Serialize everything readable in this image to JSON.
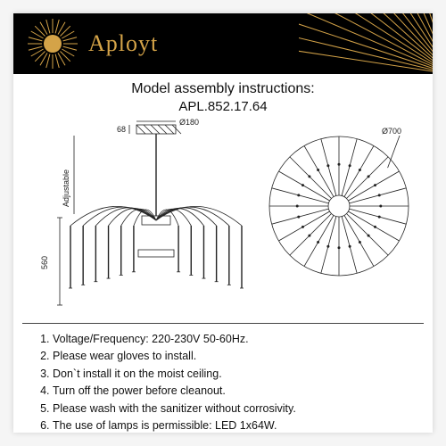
{
  "brand": "Aployt",
  "header": {
    "bg": "#000000",
    "brand_color": "#d4a348",
    "sun_rays": 24,
    "fan_rays": 18
  },
  "title": "Model assembly instructions:",
  "model": "APL.852.17.64",
  "diagram": {
    "canopy_diameter": "Ø180",
    "canopy_height": "68",
    "top_diameter": "Ø700",
    "body_height": "560",
    "adjustable_label": "Adjustable",
    "top_spokes": 24,
    "arms": 12,
    "line_color": "#222222"
  },
  "instructions": [
    "Voltage/Frequency: 220-230V 50-60Hz.",
    "Please wear gloves to install.",
    "Don`t install it on the moist ceiling.",
    "Turn off the power before cleanout.",
    "Please wash with the sanitizer without corrosivity.",
    "The use of lamps is permissible: LED 1x64W."
  ]
}
